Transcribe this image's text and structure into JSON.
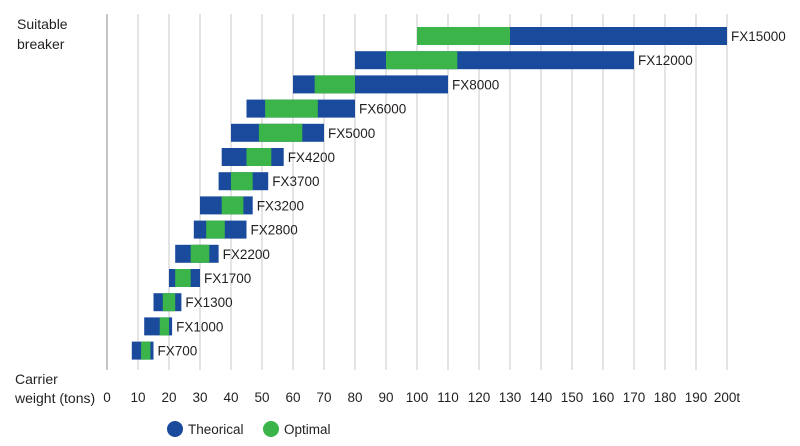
{
  "chart_data": {
    "type": "bar",
    "orientation": "horizontal",
    "subtype": "floating-range",
    "ylabel": [
      "Suitable",
      "breaker"
    ],
    "xlabel": [
      "Carrier",
      "weight (tons)"
    ],
    "xlim": [
      0,
      200
    ],
    "x_ticks": [
      "0",
      "10",
      "20",
      "30",
      "40",
      "50",
      "60",
      "70",
      "80",
      "90",
      "100",
      "110",
      "120",
      "130",
      "140",
      "150",
      "160",
      "170",
      "180",
      "190",
      "200t"
    ],
    "grid": "vertical",
    "legend_position": "bottom-center",
    "colors": {
      "Theorical": "#1a4a9c",
      "Optimal": "#3bb54a",
      "grid": "#c8c8c8",
      "axis": "#8c8c8c"
    },
    "categories": [
      "FX15000",
      "FX12000",
      "FX8000",
      "FX6000",
      "FX5000",
      "FX4200",
      "FX3700",
      "FX3200",
      "FX2800",
      "FX2200",
      "FX1700",
      "FX1300",
      "FX1000",
      "FX700"
    ],
    "series": [
      {
        "name": "Theorical",
        "ranges": [
          [
            100,
            200
          ],
          [
            80,
            170
          ],
          [
            60,
            110
          ],
          [
            45,
            80
          ],
          [
            40,
            70
          ],
          [
            37,
            57
          ],
          [
            36,
            52
          ],
          [
            30,
            47
          ],
          [
            28,
            45
          ],
          [
            22,
            36
          ],
          [
            20,
            30
          ],
          [
            15,
            24
          ],
          [
            12,
            21
          ],
          [
            8,
            15
          ]
        ]
      },
      {
        "name": "Optimal",
        "ranges": [
          [
            100,
            130
          ],
          [
            90,
            113
          ],
          [
            67,
            80
          ],
          [
            51,
            68
          ],
          [
            49,
            63
          ],
          [
            45,
            53
          ],
          [
            40,
            47
          ],
          [
            37,
            44
          ],
          [
            32,
            38
          ],
          [
            27,
            33
          ],
          [
            22,
            27
          ],
          [
            18,
            22
          ],
          [
            17,
            20
          ],
          [
            11,
            14
          ]
        ]
      }
    ]
  }
}
